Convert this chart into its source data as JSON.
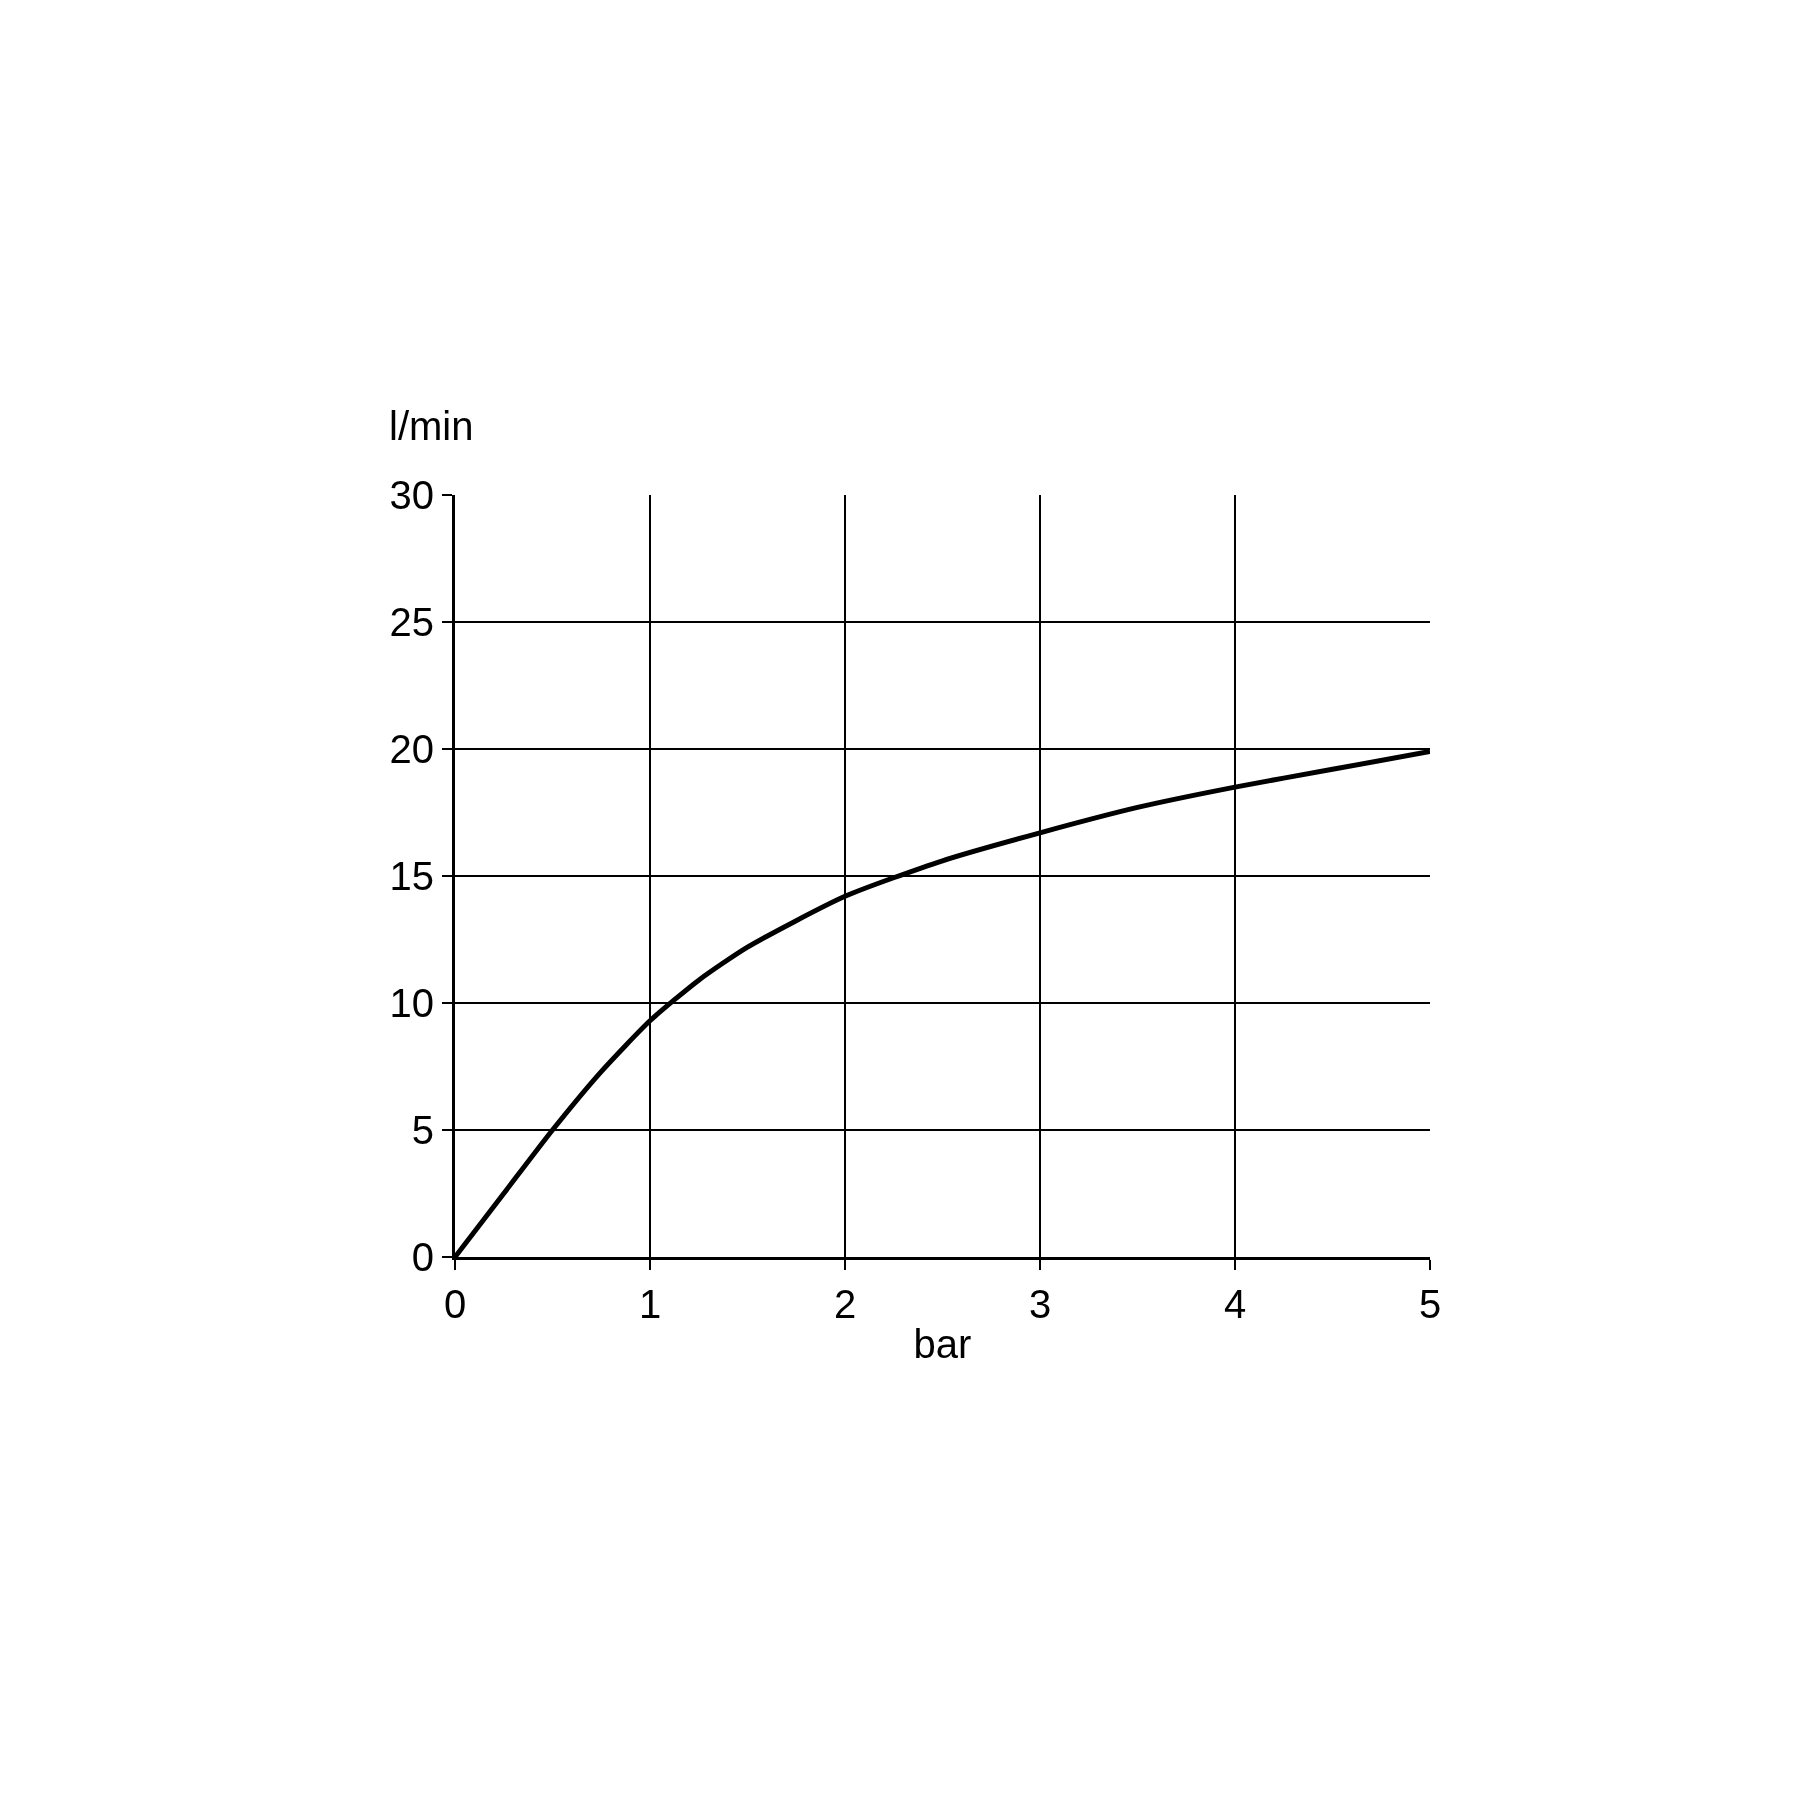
{
  "chart_data": {
    "type": "line",
    "xlabel": "bar",
    "ylabel": "l/min",
    "x": [
      0,
      0.25,
      0.5,
      0.75,
      1,
      1.25,
      1.5,
      2,
      2.5,
      3,
      3.5,
      4,
      4.5,
      5
    ],
    "series": [
      {
        "color": "#000000",
        "values": [
          0,
          2.5,
          5,
          7.3,
          9.3,
          10.9,
          12.2,
          14.2,
          15.6,
          16.7,
          17.7,
          18.5,
          19.2,
          19.9
        ]
      }
    ],
    "xlim": [
      0,
      5
    ],
    "ylim": [
      0,
      30
    ],
    "xticks": [
      0,
      1,
      2,
      3,
      4,
      5
    ],
    "yticks": [
      0,
      5,
      10,
      15,
      20,
      25,
      30
    ],
    "grid": true,
    "legend": false,
    "marker": "none",
    "line_style": "solid"
  }
}
